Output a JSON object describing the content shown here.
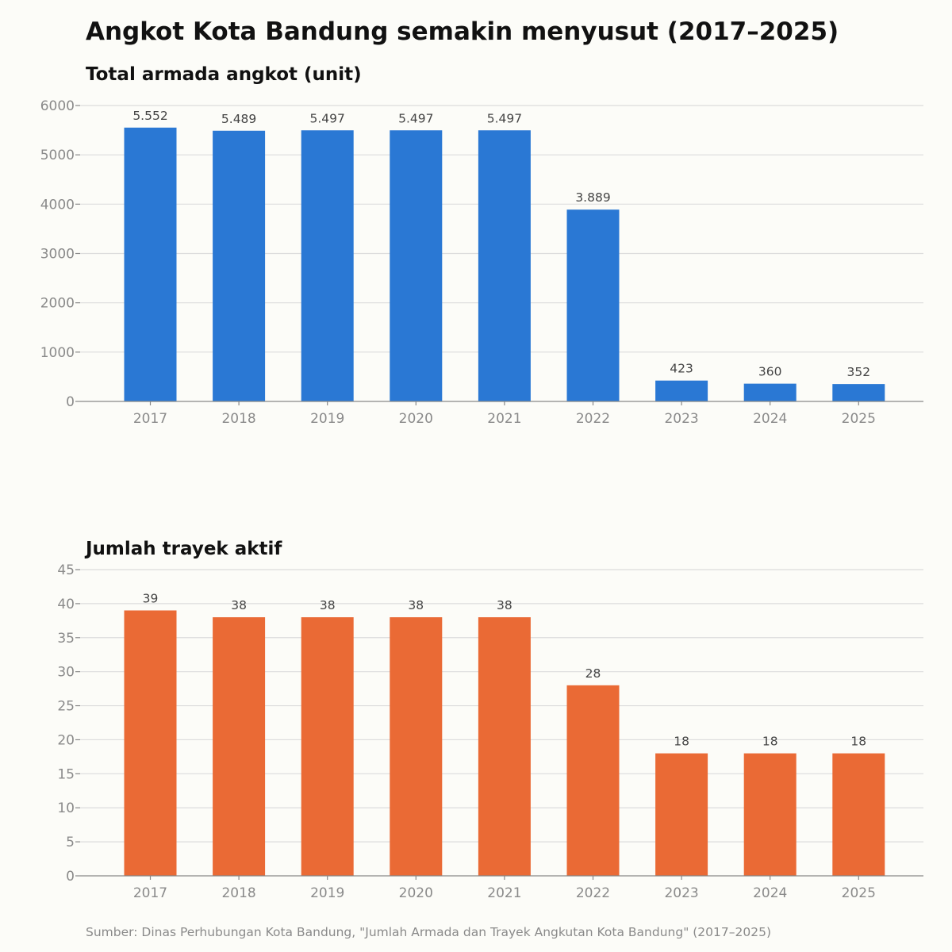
{
  "title": "Angkot Kota Bandung semakin menyusut (2017–2025)",
  "source": "Sumber: Dinas Perhubungan Kota Bandung, \"Jumlah Armada dan Trayek Angkutan Kota Bandung\" (2017–2025)",
  "chart_data": [
    {
      "type": "bar",
      "title": "Total armada angkot (unit)",
      "categories": [
        "2017",
        "2018",
        "2019",
        "2020",
        "2021",
        "2022",
        "2023",
        "2024",
        "2025"
      ],
      "values": [
        5552,
        5489,
        5497,
        5497,
        5497,
        3889,
        423,
        360,
        352
      ],
      "data_labels": [
        "5.552",
        "5.489",
        "5.497",
        "5.497",
        "5.497",
        "3.889",
        "423",
        "360",
        "352"
      ],
      "yticks": [
        0,
        1000,
        2000,
        3000,
        4000,
        5000,
        6000
      ],
      "ylim": [
        0,
        6000
      ],
      "grid": true,
      "color": "#2a78d4"
    },
    {
      "type": "bar",
      "title": "Jumlah trayek aktif",
      "categories": [
        "2017",
        "2018",
        "2019",
        "2020",
        "2021",
        "2022",
        "2023",
        "2024",
        "2025"
      ],
      "values": [
        39,
        38,
        38,
        38,
        38,
        28,
        18,
        18,
        18
      ],
      "data_labels": [
        "39",
        "38",
        "38",
        "38",
        "38",
        "28",
        "18",
        "18",
        "18"
      ],
      "yticks": [
        0,
        5,
        10,
        15,
        20,
        25,
        30,
        35,
        40,
        45
      ],
      "ylim": [
        0,
        45
      ],
      "grid": true,
      "color": "#ea6a35"
    }
  ]
}
